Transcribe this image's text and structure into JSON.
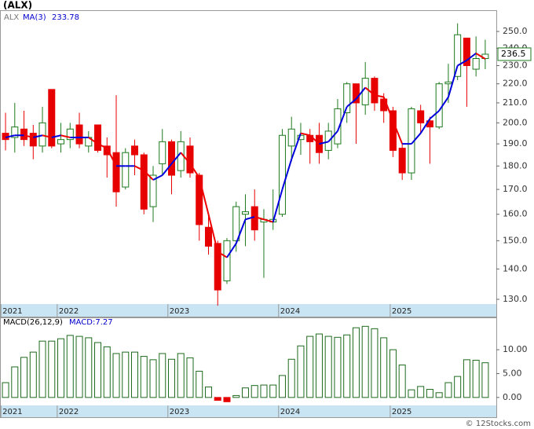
{
  "chart_data": [
    {
      "type": "candlestick",
      "title": "(ALX)",
      "ticker": "ALX",
      "log_scale": true,
      "up_color": "#1d7a1d",
      "down_color": "#e60000",
      "open": [
        195,
        193,
        197,
        195,
        189,
        217,
        190,
        192,
        199,
        189,
        199,
        189,
        186,
        171,
        189,
        185,
        163,
        181,
        191,
        178,
        189,
        176,
        155,
        149,
        136,
        150,
        160,
        163,
        157,
        157,
        160,
        189,
        192,
        194,
        194,
        187,
        190,
        205,
        220,
        209,
        223,
        212,
        206,
        188,
        177,
        206,
        201,
        198,
        220,
        224,
        246,
        228,
        234
      ],
      "high": [
        205,
        210,
        206,
        199,
        208,
        217,
        200,
        200,
        205,
        196,
        199,
        193,
        214,
        188,
        192,
        186,
        180,
        197,
        192,
        196,
        193,
        177,
        160,
        150,
        151,
        165,
        168,
        170,
        162,
        170,
        197,
        203,
        200,
        197,
        200,
        200,
        212,
        221,
        220,
        232,
        224,
        215,
        208,
        190,
        208,
        209,
        203,
        221,
        231,
        255,
        246,
        247,
        245
      ],
      "low": [
        187,
        186,
        189,
        183,
        186,
        188,
        186,
        188,
        188,
        186,
        186,
        175,
        163,
        170,
        176,
        160,
        157,
        176,
        168,
        175,
        175,
        150,
        145,
        128,
        135,
        146,
        148,
        150,
        137,
        154,
        159,
        182,
        185,
        181,
        181,
        183,
        188,
        200,
        190,
        204,
        206,
        200,
        184,
        174,
        174,
        195,
        181,
        197,
        210,
        222,
        208,
        224,
        228
      ],
      "close": [
        192,
        198,
        192,
        189,
        200,
        189,
        192,
        197,
        190,
        193,
        187,
        185,
        169,
        186,
        185,
        162,
        176,
        191,
        176,
        191,
        177,
        156,
        148,
        133,
        150,
        163,
        161,
        154,
        158,
        158,
        194,
        197,
        194,
        191,
        186,
        196,
        207,
        220,
        210,
        223,
        210,
        206,
        187,
        177,
        207,
        200,
        198,
        220,
        221,
        248,
        230,
        234,
        236.5
      ],
      "ma": {
        "name": "MA(3)",
        "up_color": "#0000dd",
        "down_color": "#ee0000",
        "values": [
          193,
          194,
          194,
          193,
          194,
          193,
          194,
          193,
          193,
          193,
          190,
          188,
          180,
          180,
          180,
          178,
          174,
          176,
          181,
          186,
          181,
          175,
          160,
          146,
          144,
          149,
          158,
          159,
          158,
          157,
          170,
          183,
          195,
          194,
          190,
          191,
          196,
          208,
          212,
          218,
          214,
          213,
          201,
          190,
          190,
          195,
          202,
          206,
          213,
          230,
          233,
          237,
          233.78
        ]
      },
      "xlim": [
        -0.6,
        53.2
      ],
      "xticks": [
        {
          "value": -0.5,
          "label": "2021"
        },
        {
          "value": 5.6,
          "label": "2022"
        },
        {
          "value": 17.6,
          "label": "2023"
        },
        {
          "value": 29.6,
          "label": "2024"
        },
        {
          "value": 41.7,
          "label": "2025"
        }
      ],
      "ylim": [
        128.5,
        262.8
      ],
      "yticks": [
        {
          "value": 130,
          "label": "130.0"
        },
        {
          "value": 140,
          "label": "140.0"
        },
        {
          "value": 150,
          "label": "150.0"
        },
        {
          "value": 160,
          "label": "160.0"
        },
        {
          "value": 170,
          "label": "170.0"
        },
        {
          "value": 180,
          "label": "180.0"
        },
        {
          "value": 190,
          "label": "190.0"
        },
        {
          "value": 200,
          "label": "200.0"
        },
        {
          "value": 210,
          "label": "210.0"
        },
        {
          "value": 220,
          "label": "220.0"
        },
        {
          "value": 230,
          "label": "230.0"
        },
        {
          "value": 240,
          "label": "240.0"
        },
        {
          "value": 250,
          "label": "250.0"
        }
      ]
    },
    {
      "type": "bar",
      "title": "MACD(26,12,9)",
      "current_label": "MACD:7.27",
      "pos_color": "#1d6b1d",
      "neg_color": "#e60000",
      "values": [
        3.1,
        6.4,
        8.4,
        9.5,
        11.8,
        11.8,
        12.3,
        13.0,
        12.8,
        12.5,
        11.5,
        10.6,
        9.2,
        9.5,
        9.5,
        8.6,
        7.9,
        9.2,
        8.0,
        9.2,
        8.3,
        5.5,
        2.2,
        -0.6,
        -0.9,
        0.4,
        2.0,
        2.5,
        2.6,
        2.6,
        4.6,
        8.0,
        10.8,
        12.8,
        13.3,
        12.8,
        12.6,
        13.1,
        14.6,
        14.9,
        14.4,
        12.5,
        10.0,
        6.8,
        1.6,
        2.3,
        1.7,
        1.0,
        3.1,
        4.4,
        7.9,
        7.8,
        7.27
      ],
      "xlim": [
        -0.6,
        53.2
      ],
      "xticks": [
        {
          "value": -0.5,
          "label": "2021"
        },
        {
          "value": 5.6,
          "label": "2022"
        },
        {
          "value": 17.6,
          "label": "2023"
        },
        {
          "value": 29.6,
          "label": "2024"
        },
        {
          "value": 41.7,
          "label": "2025"
        }
      ],
      "ylim": [
        -2,
        16.6
      ],
      "yticks": [
        {
          "value": 0,
          "label": "0.00"
        },
        {
          "value": 5,
          "label": "5.00"
        },
        {
          "value": 10,
          "label": "10.00"
        }
      ]
    }
  ],
  "footer": "© 12Stocks.com"
}
